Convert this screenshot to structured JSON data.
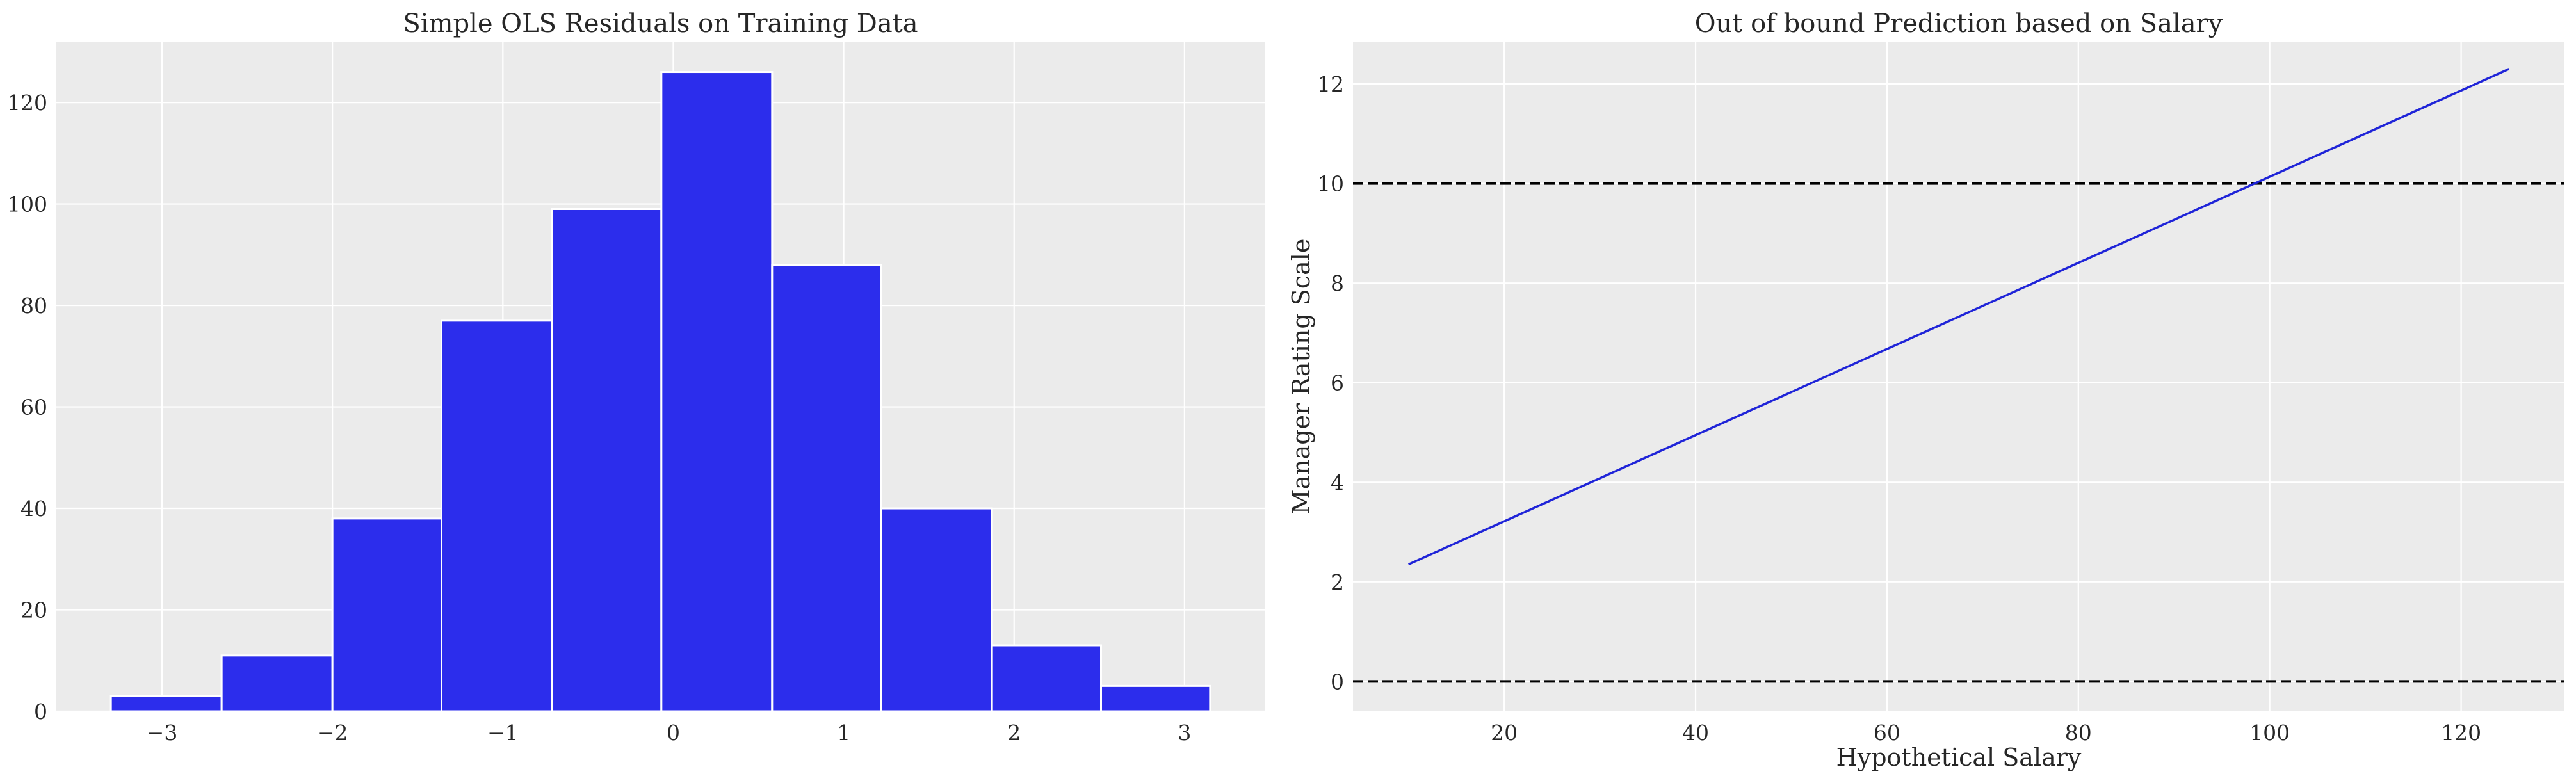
{
  "colors": {
    "plot_bg": "#ebebeb",
    "grid": "#ffffff",
    "bar": "#2c2dec",
    "line": "#1f24d8",
    "hline": "#000000",
    "text": "#262626"
  },
  "chart_data": [
    {
      "type": "bar",
      "subtype": "histogram",
      "title": "Simple OLS Residuals on Training Data",
      "xlabel": "",
      "ylabel": "",
      "bins": [
        {
          "x0": -3.3,
          "x1": -2.65,
          "count": 3
        },
        {
          "x0": -2.65,
          "x1": -2.0,
          "count": 11
        },
        {
          "x0": -2.0,
          "x1": -1.36,
          "count": 38
        },
        {
          "x0": -1.36,
          "x1": -0.71,
          "count": 77
        },
        {
          "x0": -0.71,
          "x1": -0.07,
          "count": 99
        },
        {
          "x0": -0.07,
          "x1": 0.58,
          "count": 126
        },
        {
          "x0": 0.58,
          "x1": 1.22,
          "count": 88
        },
        {
          "x0": 1.22,
          "x1": 1.87,
          "count": 40
        },
        {
          "x0": 1.87,
          "x1": 2.51,
          "count": 13
        },
        {
          "x0": 2.51,
          "x1": 3.15,
          "count": 5
        }
      ],
      "xlim": [
        -3.62,
        3.47
      ],
      "ylim": [
        0,
        132
      ],
      "xticks": [
        -3,
        -2,
        -1,
        0,
        1,
        2,
        3
      ],
      "xtick_labels": [
        "−3",
        "−2",
        "−1",
        "0",
        "1",
        "2",
        "3"
      ],
      "yticks": [
        0,
        20,
        40,
        60,
        80,
        100,
        120
      ],
      "ytick_labels": [
        "0",
        "20",
        "40",
        "60",
        "80",
        "100",
        "120"
      ],
      "grid": true
    },
    {
      "type": "line",
      "title": "Out of bound Prediction based on Salary",
      "xlabel": "Hypothetical Salary",
      "ylabel": "Manager Rating Scale",
      "series": [
        {
          "x": [
            10,
            125
          ],
          "y": [
            2.35,
            12.3
          ]
        }
      ],
      "hlines": [
        {
          "y": 10,
          "style": "dashed"
        },
        {
          "y": 0,
          "style": "dashed"
        }
      ],
      "xlim": [
        4.2,
        130.8
      ],
      "ylim": [
        -0.6,
        12.85
      ],
      "xticks": [
        20,
        40,
        60,
        80,
        100,
        120
      ],
      "xtick_labels": [
        "20",
        "40",
        "60",
        "80",
        "100",
        "120"
      ],
      "yticks": [
        0,
        2,
        4,
        6,
        8,
        10,
        12
      ],
      "ytick_labels": [
        "0",
        "2",
        "4",
        "6",
        "8",
        "10",
        "12"
      ],
      "grid": true
    }
  ]
}
